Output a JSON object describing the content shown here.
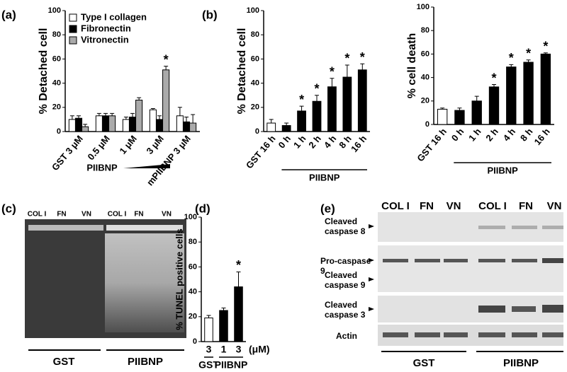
{
  "chart_data": [
    {
      "type": "bar",
      "panel": "(a)",
      "ylabel": "% Detached cell",
      "categories": [
        "GST 3 μM",
        "0.5 μM",
        "1 μM",
        "3 μM",
        "mPIIBNP 3 μM"
      ],
      "group_label": "PIIBNP",
      "series": [
        {
          "name": "Type I collagen",
          "color": "#ffffff",
          "values": [
            10,
            13,
            10,
            18,
            13
          ],
          "errors": [
            3,
            2,
            2,
            1,
            7
          ]
        },
        {
          "name": "Fibronectin",
          "color": "#000000",
          "values": [
            11,
            13,
            12,
            10,
            8
          ],
          "errors": [
            2,
            2,
            3,
            3,
            4
          ]
        },
        {
          "name": "Vitronectin",
          "color": "#aaaaaa",
          "values": [
            4,
            13,
            26,
            51,
            7
          ],
          "errors": [
            2,
            2,
            2,
            3,
            7
          ],
          "annotations": [
            null,
            null,
            null,
            "*",
            null
          ]
        }
      ],
      "ylim": [
        0,
        100
      ],
      "yticks": [
        0,
        20,
        40,
        60,
        80,
        100
      ]
    },
    {
      "type": "bar",
      "panel": "(b)",
      "ylabel": "% Detached cell",
      "categories": [
        "GST 16 h",
        "0 h",
        "1 h",
        "2 h",
        "4 h",
        "8 h",
        "16 h"
      ],
      "group_label": "PIIBNP",
      "values": [
        7,
        5,
        17,
        25,
        37,
        45,
        51
      ],
      "errors": [
        3,
        2,
        4,
        5,
        7,
        10,
        5
      ],
      "colors": [
        "#ffffff",
        "#000000",
        "#000000",
        "#000000",
        "#000000",
        "#000000",
        "#000000"
      ],
      "annotations": [
        null,
        null,
        "*",
        "*",
        "*",
        "*",
        "*"
      ],
      "ylim": [
        0,
        100
      ],
      "yticks": [
        0,
        20,
        40,
        60,
        80,
        100
      ]
    },
    {
      "type": "bar",
      "ylabel": "% cell death",
      "categories": [
        "GST 16 h",
        "0 h",
        "1 h",
        "2 h",
        "4 h",
        "8 h",
        "16 h"
      ],
      "group_label": "PIIBNP",
      "values": [
        13,
        12,
        20,
        32,
        49,
        53,
        60
      ],
      "errors": [
        1,
        2,
        4,
        2,
        2,
        2,
        1
      ],
      "colors": [
        "#ffffff",
        "#000000",
        "#000000",
        "#000000",
        "#000000",
        "#000000",
        "#000000"
      ],
      "annotations": [
        null,
        null,
        null,
        "*",
        "*",
        "*",
        "*"
      ],
      "ylim": [
        0,
        100
      ],
      "yticks": [
        0,
        20,
        40,
        60,
        80,
        100
      ]
    },
    {
      "type": "bar",
      "panel": "(d)",
      "ylabel": "% TUNEL positive cells",
      "categories": [
        "3",
        "1",
        "3"
      ],
      "unit_label": "(μM)",
      "group_labels": [
        "GST",
        "PIIBNP"
      ],
      "values": [
        19,
        25,
        44
      ],
      "errors": [
        2,
        2,
        12
      ],
      "colors": [
        "#ffffff",
        "#000000",
        "#000000"
      ],
      "annotations": [
        null,
        null,
        "*"
      ],
      "ylim": [
        0,
        100
      ],
      "yticks": [
        0,
        20,
        40,
        60,
        80,
        100
      ]
    }
  ],
  "gels": {
    "c": {
      "panel": "(c)",
      "lanes": [
        "COL I",
        "FN",
        "VN",
        "COL I",
        "FN",
        "VN"
      ],
      "groups": [
        "GST",
        "PIIBNP"
      ]
    },
    "e": {
      "panel": "(e)",
      "lanes": [
        "COL I",
        "FN",
        "VN",
        "COL I",
        "FN",
        "VN"
      ],
      "rows": [
        "Cleaved caspase 8",
        "Pro-caspase 9",
        "Cleaved caspase 9",
        "Cleaved caspase 3",
        "Actin"
      ],
      "groups": [
        "GST",
        "PIIBNP"
      ]
    }
  }
}
